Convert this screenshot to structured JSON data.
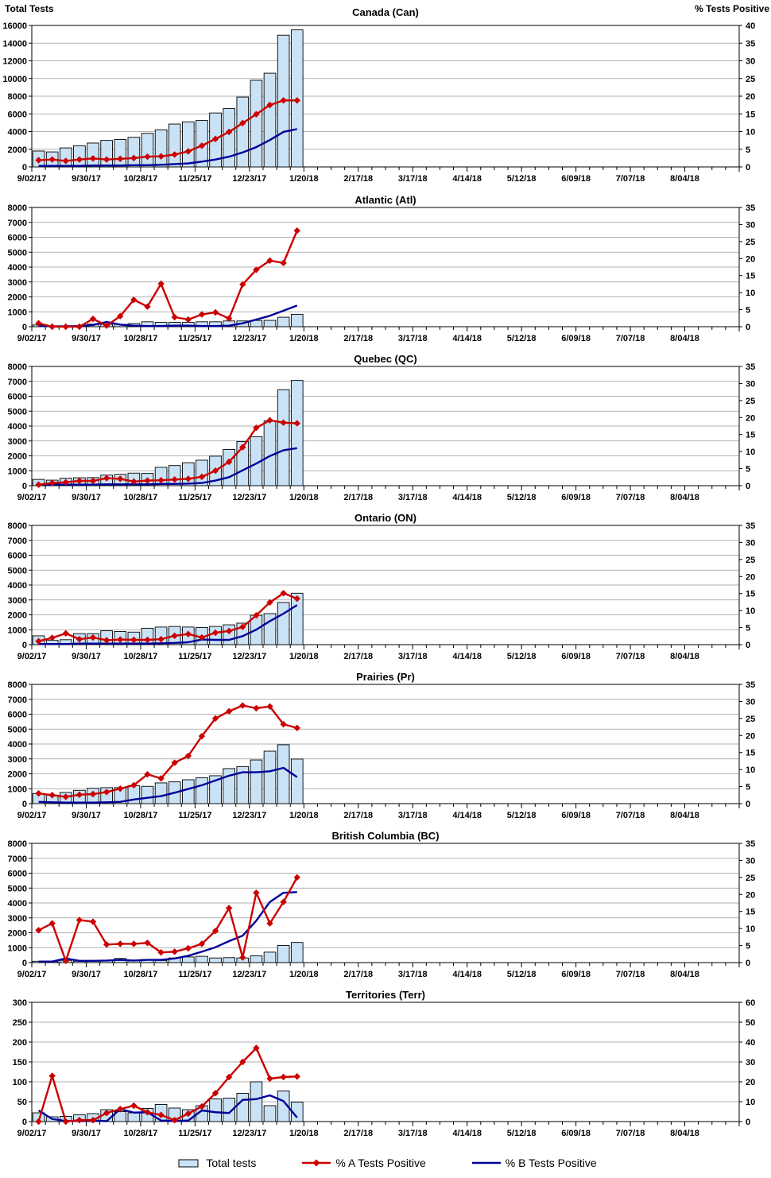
{
  "axis_titles": {
    "left": "Total Tests",
    "right": "% Tests Positive"
  },
  "x_axis": {
    "tick_labels": [
      "9/02/17",
      "9/30/17",
      "10/28/17",
      "11/25/17",
      "12/23/17",
      "1/20/18",
      "2/17/18",
      "3/17/18",
      "4/14/18",
      "5/12/18",
      "6/09/18",
      "7/07/18",
      "8/04/18"
    ],
    "weeks_total": 52,
    "label_every_n_weeks": 4
  },
  "legend": {
    "items": [
      {
        "label": "Total tests",
        "swatch": "bar"
      },
      {
        "label": "% A Tests Positive",
        "swatch": "line-diamond"
      },
      {
        "label": "% B Tests Positive",
        "swatch": "line"
      }
    ]
  },
  "colors": {
    "bar_fill": "#C9E2F6",
    "bar_border": "#000000",
    "pct_a_red": "#CC0000",
    "pct_b_blue": "#000099",
    "gridline": "#999999",
    "axis": "#000000",
    "background": "#FFFFFF"
  },
  "chart_data": [
    {
      "id": "can",
      "type": "bar+line",
      "title": "Canada (Can)",
      "left_axis": {
        "title": "Total Tests",
        "min": 0,
        "max": 16000,
        "step": 2000
      },
      "right_axis": {
        "title": "% Tests Positive",
        "min": 0,
        "max": 40,
        "step": 5
      },
      "categories": [
        "9/02/17",
        "9/09/17",
        "9/16/17",
        "9/23/17",
        "9/30/17",
        "10/07/17",
        "10/14/17",
        "10/21/17",
        "10/28/17",
        "11/04/17",
        "11/11/17",
        "11/18/17",
        "11/25/17",
        "12/02/17",
        "12/09/17",
        "12/16/17",
        "12/23/17",
        "12/30/17",
        "1/06/18",
        "1/13/18"
      ],
      "total_tests": [
        1800,
        1700,
        2150,
        2400,
        2700,
        3000,
        3100,
        3350,
        3800,
        4200,
        4850,
        5100,
        5250,
        6100,
        6600,
        7900,
        9800,
        10600,
        14900,
        15500
      ],
      "pct_a_positive": [
        1.9,
        2.1,
        1.7,
        2.1,
        2.4,
        2.1,
        2.3,
        2.5,
        2.9,
        3.0,
        3.5,
        4.4,
        6.0,
        7.9,
        9.9,
        12.4,
        14.9,
        17.5,
        18.8,
        18.8
      ],
      "pct_b_positive": [
        0.3,
        0.3,
        0.3,
        0.3,
        0.4,
        0.4,
        0.4,
        0.5,
        0.5,
        0.6,
        0.8,
        1.0,
        1.5,
        2.1,
        2.9,
        4.1,
        5.6,
        7.6,
        9.9,
        10.7
      ]
    },
    {
      "id": "atl",
      "type": "bar+line",
      "title": "Atlantic (Atl)",
      "left_axis": {
        "min": 0,
        "max": 8000,
        "step": 1000
      },
      "right_axis": {
        "min": 0,
        "max": 35,
        "step": 5
      },
      "categories": [
        "9/02/17",
        "9/09/17",
        "9/16/17",
        "9/23/17",
        "9/30/17",
        "10/07/17",
        "10/14/17",
        "10/21/17",
        "10/28/17",
        "11/04/17",
        "11/11/17",
        "11/18/17",
        "11/25/17",
        "12/02/17",
        "12/09/17",
        "12/16/17",
        "12/23/17",
        "12/30/17",
        "1/06/18",
        "1/13/18"
      ],
      "total_tests": [
        115,
        60,
        60,
        60,
        170,
        155,
        155,
        210,
        330,
        290,
        290,
        290,
        330,
        330,
        385,
        385,
        420,
        425,
        635,
        830
      ],
      "pct_a_positive": [
        1.0,
        0,
        0,
        0,
        2.3,
        0.3,
        3.1,
        7.9,
        5.9,
        12.6,
        2.8,
        2.1,
        3.6,
        4.2,
        2.4,
        12.4,
        16.7,
        19.4,
        18.7,
        28.2
      ],
      "pct_b_positive": [
        0.2,
        0.1,
        0.1,
        0.2,
        0.5,
        1.4,
        0.6,
        0.3,
        0.2,
        0.2,
        0.3,
        0.3,
        0.2,
        0.2,
        0.3,
        1.0,
        2.1,
        3.2,
        4.7,
        6.2
      ]
    },
    {
      "id": "qc",
      "type": "bar+line",
      "title": "Quebec (QC)",
      "left_axis": {
        "min": 0,
        "max": 8000,
        "step": 1000
      },
      "right_axis": {
        "min": 0,
        "max": 35,
        "step": 5
      },
      "categories": [
        "9/02/17",
        "9/09/17",
        "9/16/17",
        "9/23/17",
        "9/30/17",
        "10/07/17",
        "10/14/17",
        "10/21/17",
        "10/28/17",
        "11/04/17",
        "11/11/17",
        "11/18/17",
        "11/25/17",
        "12/02/17",
        "12/09/17",
        "12/16/17",
        "12/23/17",
        "12/30/17",
        "1/06/18",
        "1/13/18"
      ],
      "total_tests": [
        420,
        370,
        500,
        530,
        540,
        710,
        760,
        840,
        820,
        1230,
        1350,
        1540,
        1710,
        1980,
        2430,
        2960,
        3290,
        4360,
        6440,
        7060
      ],
      "pct_a_positive": [
        0.3,
        0.8,
        1.0,
        1.4,
        1.4,
        2.2,
        2.0,
        1.2,
        1.5,
        1.6,
        1.8,
        2.0,
        2.6,
        4.4,
        7.0,
        11.3,
        17.0,
        19.2,
        18.5,
        18.3
      ],
      "pct_b_positive": [
        0.3,
        0.3,
        0.3,
        0.3,
        0.3,
        0.4,
        0.4,
        0.4,
        0.4,
        0.5,
        0.5,
        0.6,
        0.8,
        1.5,
        2.5,
        4.5,
        6.5,
        8.7,
        10.4,
        11.0
      ]
    },
    {
      "id": "on",
      "type": "bar+line",
      "title": "Ontario (ON)",
      "left_axis": {
        "min": 0,
        "max": 8000,
        "step": 1000
      },
      "right_axis": {
        "min": 0,
        "max": 35,
        "step": 5
      },
      "categories": [
        "9/02/17",
        "9/09/17",
        "9/16/17",
        "9/23/17",
        "9/30/17",
        "10/07/17",
        "10/14/17",
        "10/21/17",
        "10/28/17",
        "11/04/17",
        "11/11/17",
        "11/18/17",
        "11/25/17",
        "12/02/17",
        "12/09/17",
        "12/16/17",
        "12/23/17",
        "12/30/17",
        "1/06/18",
        "1/13/18"
      ],
      "total_tests": [
        590,
        300,
        330,
        740,
        740,
        930,
        880,
        840,
        1100,
        1180,
        1220,
        1180,
        1150,
        1220,
        1330,
        1440,
        1970,
        2080,
        2830,
        3450
      ],
      "pct_a_positive": [
        1.0,
        2.0,
        3.3,
        1.6,
        2.1,
        1.3,
        1.5,
        1.4,
        1.4,
        1.6,
        2.6,
        3.1,
        2.1,
        3.5,
        4.0,
        5.2,
        8.6,
        12.4,
        15.1,
        13.5
      ],
      "pct_b_positive": [
        0.2,
        0.2,
        0.2,
        0.3,
        0.3,
        0.3,
        0.3,
        0.3,
        0.3,
        0.4,
        0.5,
        0.7,
        1.5,
        1.4,
        1.4,
        2.5,
        4.4,
        6.9,
        9.1,
        11.6
      ]
    },
    {
      "id": "pr",
      "type": "bar+line",
      "title": "Prairies (Pr)",
      "left_axis": {
        "min": 0,
        "max": 8000,
        "step": 1000
      },
      "right_axis": {
        "min": 0,
        "max": 35,
        "step": 5
      },
      "categories": [
        "9/02/17",
        "9/09/17",
        "9/16/17",
        "9/23/17",
        "9/30/17",
        "10/07/17",
        "10/14/17",
        "10/21/17",
        "10/28/17",
        "11/04/17",
        "11/11/17",
        "11/18/17",
        "11/25/17",
        "12/02/17",
        "12/09/17",
        "12/16/17",
        "12/23/17",
        "12/30/17",
        "1/06/18",
        "1/13/18"
      ],
      "total_tests": [
        680,
        570,
        750,
        890,
        1030,
        1070,
        1070,
        1210,
        1160,
        1390,
        1460,
        1600,
        1740,
        1870,
        2350,
        2490,
        2930,
        3520,
        3950,
        2990
      ],
      "pct_a_positive": [
        3.0,
        2.5,
        2.0,
        2.6,
        2.8,
        3.4,
        4.4,
        5.4,
        8.6,
        7.4,
        12.0,
        14.0,
        19.8,
        25.0,
        27.1,
        28.8,
        28.0,
        28.5,
        23.3,
        22.2
      ],
      "pct_b_positive": [
        0.5,
        0.4,
        0.3,
        0.3,
        0.3,
        0.4,
        0.5,
        1.2,
        1.7,
        2.2,
        3.2,
        4.3,
        5.4,
        6.8,
        8.2,
        9.2,
        9.2,
        9.5,
        10.5,
        7.8
      ]
    },
    {
      "id": "bc",
      "type": "bar+line",
      "title": "British Columbia (BC)",
      "left_axis": {
        "min": 0,
        "max": 8000,
        "step": 1000
      },
      "right_axis": {
        "min": 0,
        "max": 35,
        "step": 5
      },
      "categories": [
        "9/02/17",
        "9/09/17",
        "9/16/17",
        "9/23/17",
        "9/30/17",
        "10/07/17",
        "10/14/17",
        "10/21/17",
        "10/28/17",
        "11/04/17",
        "11/11/17",
        "11/18/17",
        "11/25/17",
        "12/02/17",
        "12/09/17",
        "12/16/17",
        "12/23/17",
        "12/30/17",
        "1/06/18",
        "1/13/18"
      ],
      "total_tests": [
        90,
        60,
        150,
        90,
        110,
        160,
        280,
        160,
        210,
        140,
        310,
        380,
        420,
        310,
        330,
        310,
        450,
        700,
        1150,
        1350
      ],
      "pct_a_positive": [
        9.5,
        11.5,
        0.5,
        12.5,
        12.0,
        5.3,
        5.5,
        5.5,
        5.8,
        3.0,
        3.2,
        4.2,
        5.5,
        9.3,
        16.0,
        1.5,
        20.5,
        11.5,
        17.8,
        25.0
      ],
      "pct_b_positive": [
        0.3,
        0.3,
        1.2,
        0.5,
        0.5,
        0.6,
        0.8,
        0.6,
        0.8,
        0.8,
        1.2,
        2.0,
        3.2,
        4.5,
        6.3,
        7.9,
        12.3,
        17.8,
        20.5,
        20.7
      ]
    },
    {
      "id": "terr",
      "type": "bar+line",
      "title": "Territories (Terr)",
      "left_axis": {
        "min": 0,
        "max": 300,
        "step": 50
      },
      "right_axis": {
        "min": 0,
        "max": 60,
        "step": 10
      },
      "categories": [
        "9/02/17",
        "9/09/17",
        "9/16/17",
        "9/23/17",
        "9/30/17",
        "10/07/17",
        "10/14/17",
        "10/21/17",
        "10/28/17",
        "11/04/17",
        "11/11/17",
        "11/18/17",
        "11/25/17",
        "12/02/17",
        "12/09/17",
        "12/16/17",
        "12/23/17",
        "12/30/17",
        "1/06/18",
        "1/13/18"
      ],
      "total_tests": [
        22,
        12,
        13,
        17,
        20,
        30,
        25,
        22,
        33,
        43,
        34,
        30,
        40,
        57,
        59,
        71,
        100,
        40,
        77,
        49
      ],
      "pct_a_positive": [
        0,
        23,
        0,
        0.7,
        0.7,
        4.3,
        6.3,
        8,
        4.7,
        3.3,
        0.7,
        4,
        7.6,
        14.3,
        22.4,
        30,
        37,
        21.6,
        22.4,
        22.7
      ],
      "pct_b_positive": [
        5.6,
        1.3,
        0.3,
        0.3,
        0.5,
        0.2,
        6.3,
        4.5,
        4.7,
        0.5,
        0.3,
        0.5,
        5.6,
        4.7,
        4.3,
        10.9,
        11.3,
        13.2,
        10.3,
        2.0
      ]
    }
  ]
}
